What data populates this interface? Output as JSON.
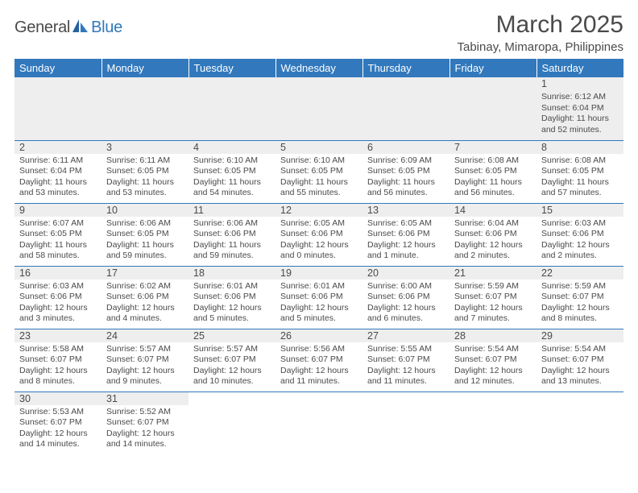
{
  "brand": {
    "name1": "General",
    "name2": "Blue"
  },
  "title": "March 2025",
  "location": "Tabinay, Mimaropa, Philippines",
  "colors": {
    "header_bg": "#3178bd",
    "header_fg": "#ffffff",
    "grey_row": "#eeeeee",
    "text": "#4a4a4a",
    "border": "#3178bd"
  },
  "calendar": {
    "day_headers": [
      "Sunday",
      "Monday",
      "Tuesday",
      "Wednesday",
      "Thursday",
      "Friday",
      "Saturday"
    ],
    "weeks": [
      {
        "grey": true,
        "cells": [
          {
            "empty": true
          },
          {
            "empty": true
          },
          {
            "empty": true
          },
          {
            "empty": true
          },
          {
            "empty": true
          },
          {
            "empty": true
          },
          {
            "day": "1",
            "sunrise": "Sunrise: 6:12 AM",
            "sunset": "Sunset: 6:04 PM",
            "daylight": "Daylight: 11 hours and 52 minutes."
          }
        ]
      },
      {
        "grey": false,
        "cells": [
          {
            "day": "2",
            "sunrise": "Sunrise: 6:11 AM",
            "sunset": "Sunset: 6:04 PM",
            "daylight": "Daylight: 11 hours and 53 minutes."
          },
          {
            "day": "3",
            "sunrise": "Sunrise: 6:11 AM",
            "sunset": "Sunset: 6:05 PM",
            "daylight": "Daylight: 11 hours and 53 minutes."
          },
          {
            "day": "4",
            "sunrise": "Sunrise: 6:10 AM",
            "sunset": "Sunset: 6:05 PM",
            "daylight": "Daylight: 11 hours and 54 minutes."
          },
          {
            "day": "5",
            "sunrise": "Sunrise: 6:10 AM",
            "sunset": "Sunset: 6:05 PM",
            "daylight": "Daylight: 11 hours and 55 minutes."
          },
          {
            "day": "6",
            "sunrise": "Sunrise: 6:09 AM",
            "sunset": "Sunset: 6:05 PM",
            "daylight": "Daylight: 11 hours and 56 minutes."
          },
          {
            "day": "7",
            "sunrise": "Sunrise: 6:08 AM",
            "sunset": "Sunset: 6:05 PM",
            "daylight": "Daylight: 11 hours and 56 minutes."
          },
          {
            "day": "8",
            "sunrise": "Sunrise: 6:08 AM",
            "sunset": "Sunset: 6:05 PM",
            "daylight": "Daylight: 11 hours and 57 minutes."
          }
        ]
      },
      {
        "grey": false,
        "cells": [
          {
            "day": "9",
            "sunrise": "Sunrise: 6:07 AM",
            "sunset": "Sunset: 6:05 PM",
            "daylight": "Daylight: 11 hours and 58 minutes."
          },
          {
            "day": "10",
            "sunrise": "Sunrise: 6:06 AM",
            "sunset": "Sunset: 6:05 PM",
            "daylight": "Daylight: 11 hours and 59 minutes."
          },
          {
            "day": "11",
            "sunrise": "Sunrise: 6:06 AM",
            "sunset": "Sunset: 6:06 PM",
            "daylight": "Daylight: 11 hours and 59 minutes."
          },
          {
            "day": "12",
            "sunrise": "Sunrise: 6:05 AM",
            "sunset": "Sunset: 6:06 PM",
            "daylight": "Daylight: 12 hours and 0 minutes."
          },
          {
            "day": "13",
            "sunrise": "Sunrise: 6:05 AM",
            "sunset": "Sunset: 6:06 PM",
            "daylight": "Daylight: 12 hours and 1 minute."
          },
          {
            "day": "14",
            "sunrise": "Sunrise: 6:04 AM",
            "sunset": "Sunset: 6:06 PM",
            "daylight": "Daylight: 12 hours and 2 minutes."
          },
          {
            "day": "15",
            "sunrise": "Sunrise: 6:03 AM",
            "sunset": "Sunset: 6:06 PM",
            "daylight": "Daylight: 12 hours and 2 minutes."
          }
        ]
      },
      {
        "grey": false,
        "cells": [
          {
            "day": "16",
            "sunrise": "Sunrise: 6:03 AM",
            "sunset": "Sunset: 6:06 PM",
            "daylight": "Daylight: 12 hours and 3 minutes."
          },
          {
            "day": "17",
            "sunrise": "Sunrise: 6:02 AM",
            "sunset": "Sunset: 6:06 PM",
            "daylight": "Daylight: 12 hours and 4 minutes."
          },
          {
            "day": "18",
            "sunrise": "Sunrise: 6:01 AM",
            "sunset": "Sunset: 6:06 PM",
            "daylight": "Daylight: 12 hours and 5 minutes."
          },
          {
            "day": "19",
            "sunrise": "Sunrise: 6:01 AM",
            "sunset": "Sunset: 6:06 PM",
            "daylight": "Daylight: 12 hours and 5 minutes."
          },
          {
            "day": "20",
            "sunrise": "Sunrise: 6:00 AM",
            "sunset": "Sunset: 6:06 PM",
            "daylight": "Daylight: 12 hours and 6 minutes."
          },
          {
            "day": "21",
            "sunrise": "Sunrise: 5:59 AM",
            "sunset": "Sunset: 6:07 PM",
            "daylight": "Daylight: 12 hours and 7 minutes."
          },
          {
            "day": "22",
            "sunrise": "Sunrise: 5:59 AM",
            "sunset": "Sunset: 6:07 PM",
            "daylight": "Daylight: 12 hours and 8 minutes."
          }
        ]
      },
      {
        "grey": false,
        "cells": [
          {
            "day": "23",
            "sunrise": "Sunrise: 5:58 AM",
            "sunset": "Sunset: 6:07 PM",
            "daylight": "Daylight: 12 hours and 8 minutes."
          },
          {
            "day": "24",
            "sunrise": "Sunrise: 5:57 AM",
            "sunset": "Sunset: 6:07 PM",
            "daylight": "Daylight: 12 hours and 9 minutes."
          },
          {
            "day": "25",
            "sunrise": "Sunrise: 5:57 AM",
            "sunset": "Sunset: 6:07 PM",
            "daylight": "Daylight: 12 hours and 10 minutes."
          },
          {
            "day": "26",
            "sunrise": "Sunrise: 5:56 AM",
            "sunset": "Sunset: 6:07 PM",
            "daylight": "Daylight: 12 hours and 11 minutes."
          },
          {
            "day": "27",
            "sunrise": "Sunrise: 5:55 AM",
            "sunset": "Sunset: 6:07 PM",
            "daylight": "Daylight: 12 hours and 11 minutes."
          },
          {
            "day": "28",
            "sunrise": "Sunrise: 5:54 AM",
            "sunset": "Sunset: 6:07 PM",
            "daylight": "Daylight: 12 hours and 12 minutes."
          },
          {
            "day": "29",
            "sunrise": "Sunrise: 5:54 AM",
            "sunset": "Sunset: 6:07 PM",
            "daylight": "Daylight: 12 hours and 13 minutes."
          }
        ]
      },
      {
        "grey": false,
        "cells": [
          {
            "day": "30",
            "sunrise": "Sunrise: 5:53 AM",
            "sunset": "Sunset: 6:07 PM",
            "daylight": "Daylight: 12 hours and 14 minutes."
          },
          {
            "day": "31",
            "sunrise": "Sunrise: 5:52 AM",
            "sunset": "Sunset: 6:07 PM",
            "daylight": "Daylight: 12 hours and 14 minutes."
          },
          {
            "empty": true
          },
          {
            "empty": true
          },
          {
            "empty": true
          },
          {
            "empty": true
          },
          {
            "empty": true
          }
        ]
      }
    ]
  }
}
